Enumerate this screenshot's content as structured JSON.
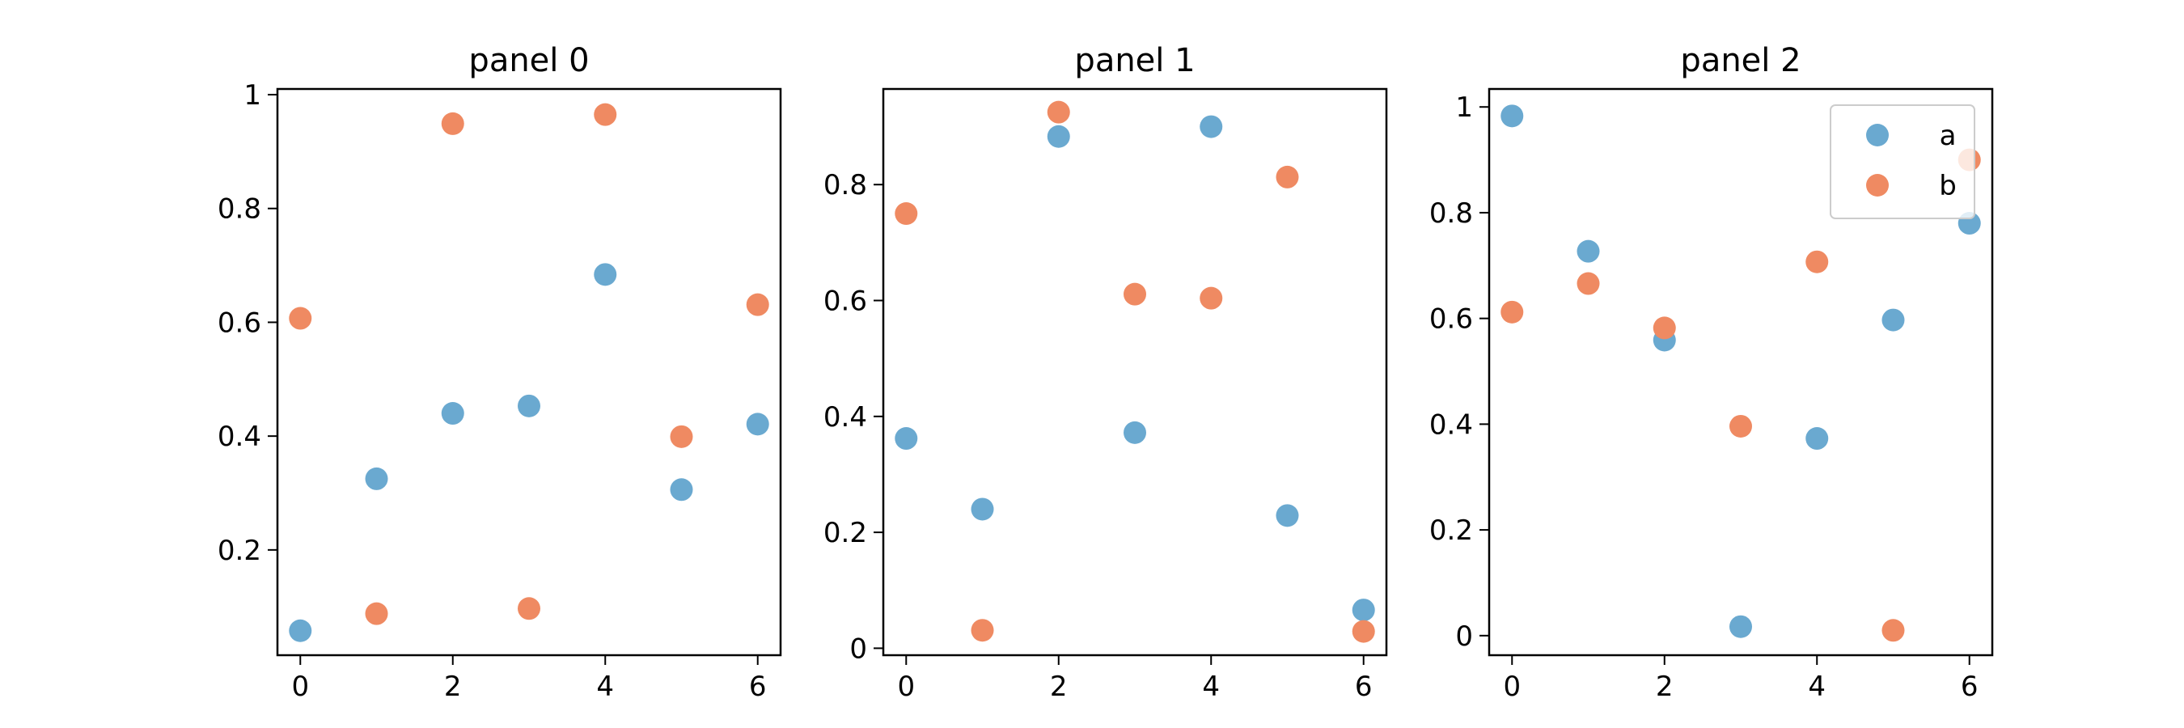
{
  "chart_data": [
    {
      "type": "scatter",
      "title": "panel 0",
      "xlabel": "",
      "ylabel": "",
      "xlim": [
        -0.3,
        6.3
      ],
      "ylim": [
        0.015,
        1.01
      ],
      "xticks": [
        0,
        2,
        4,
        6
      ],
      "yticks": [
        0.2,
        0.4,
        0.6,
        0.8,
        1.0
      ],
      "legend": null,
      "series": [
        {
          "name": "a",
          "color": "#6aa9d0",
          "x": [
            0,
            1,
            2,
            3,
            4,
            5,
            6
          ],
          "y": [
            0.058,
            0.325,
            0.44,
            0.453,
            0.684,
            0.306,
            0.421
          ]
        },
        {
          "name": "b",
          "color": "#ef8a62",
          "x": [
            0,
            1,
            2,
            3,
            4,
            5,
            6
          ],
          "y": [
            0.607,
            0.088,
            0.949,
            0.097,
            0.965,
            0.399,
            0.631
          ]
        }
      ]
    },
    {
      "type": "scatter",
      "title": "panel 1",
      "xlabel": "",
      "ylabel": "",
      "xlim": [
        -0.3,
        6.3
      ],
      "ylim": [
        -0.012,
        0.965
      ],
      "xticks": [
        0,
        2,
        4,
        6
      ],
      "yticks": [
        0.0,
        0.2,
        0.4,
        0.6,
        0.8
      ],
      "legend": null,
      "series": [
        {
          "name": "a",
          "color": "#6aa9d0",
          "x": [
            0,
            1,
            2,
            3,
            4,
            5,
            6
          ],
          "y": [
            0.362,
            0.24,
            0.883,
            0.372,
            0.9,
            0.229,
            0.066
          ]
        },
        {
          "name": "b",
          "color": "#ef8a62",
          "x": [
            0,
            1,
            2,
            3,
            4,
            5,
            6
          ],
          "y": [
            0.75,
            0.031,
            0.925,
            0.611,
            0.604,
            0.813,
            0.029
          ]
        }
      ]
    },
    {
      "type": "scatter",
      "title": "panel 2",
      "xlabel": "",
      "ylabel": "",
      "xlim": [
        -0.3,
        6.3
      ],
      "ylim": [
        -0.037,
        1.034
      ],
      "xticks": [
        0,
        2,
        4,
        6
      ],
      "yticks": [
        0.0,
        0.2,
        0.4,
        0.6,
        0.8,
        1.0
      ],
      "legend": "top-right",
      "series": [
        {
          "name": "a",
          "color": "#6aa9d0",
          "x": [
            0,
            1,
            2,
            3,
            4,
            5,
            6
          ],
          "y": [
            0.983,
            0.727,
            0.559,
            0.017,
            0.373,
            0.597,
            0.78
          ]
        },
        {
          "name": "b",
          "color": "#ef8a62",
          "x": [
            0,
            1,
            2,
            3,
            4,
            5,
            6
          ],
          "y": [
            0.612,
            0.666,
            0.582,
            0.396,
            0.707,
            0.01,
            0.9
          ]
        }
      ]
    }
  ]
}
